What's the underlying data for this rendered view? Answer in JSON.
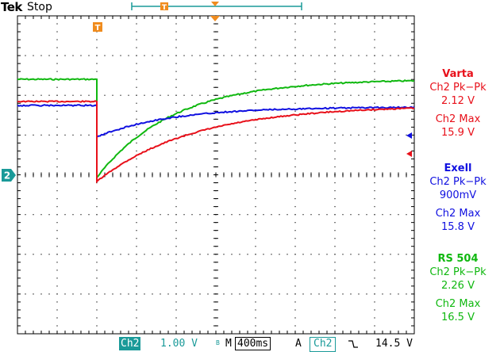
{
  "header": {
    "brand": "Tek",
    "acquisition_state": "Stop"
  },
  "colors": {
    "ch_varta": "#e8101a",
    "ch_exell": "#1010e0",
    "ch_rs504": "#10b810",
    "channel_marker": "#1a9a99",
    "trigger_marker": "#f08c1e"
  },
  "markers": {
    "trigger_label": "T",
    "channel_ground_label": "2"
  },
  "measurements": [
    {
      "name": "Varta",
      "pkpk_label": "Ch2 Pk−Pk",
      "pkpk_value": "2.12 V",
      "max_label": "Ch2 Max",
      "max_value": "15.9 V"
    },
    {
      "name": "Exell",
      "pkpk_label": "Ch2 Pk−Pk",
      "pkpk_value": "900mV",
      "max_label": "Ch2 Max",
      "max_value": "15.8 V"
    },
    {
      "name": "RS 504",
      "pkpk_label": "Ch2 Pk−Pk",
      "pkpk_value": "2.26 V",
      "max_label": "Ch2 Max",
      "max_value": "16.5 V"
    }
  ],
  "status_bar": {
    "channel": "Ch2",
    "volts_per_div": "1.00 V",
    "bandwidth_icon": "bandwidth-limit-icon",
    "bandwidth_text": "B",
    "timebase_prefix": "M",
    "time_per_div": "400ms",
    "trigger_mode": "A",
    "trigger_source": "Ch2",
    "trigger_slope_icon": "falling-edge-icon",
    "trigger_level": "14.5 V"
  }
}
